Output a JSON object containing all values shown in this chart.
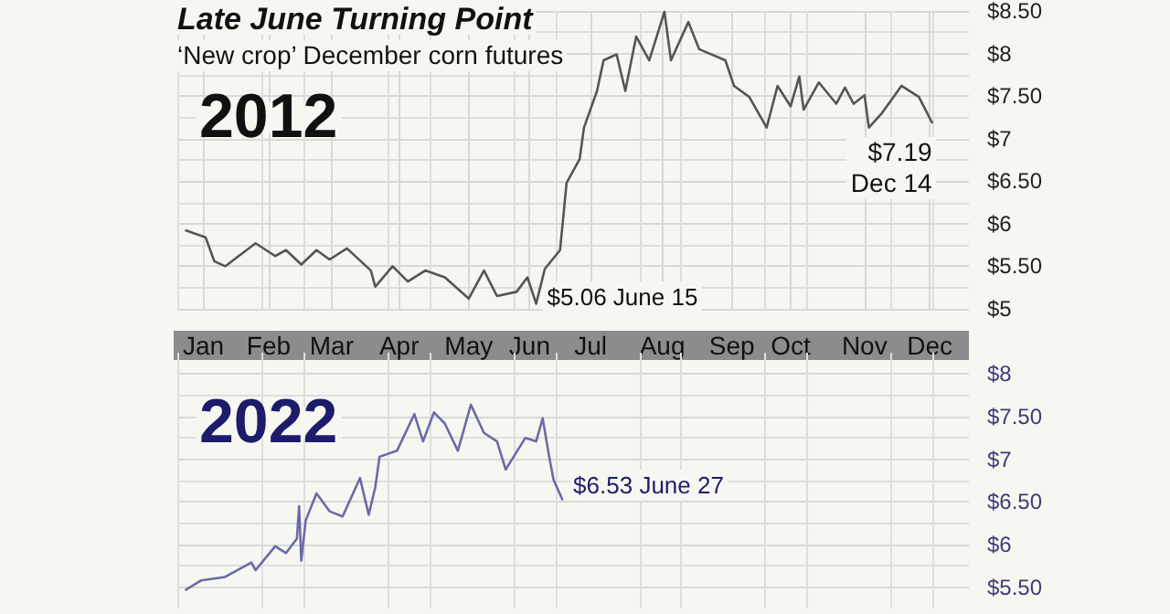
{
  "chart_data": [
    {
      "type": "line",
      "title": "Late June Turning Point",
      "subtitle": "‘New crop’ December corn futures",
      "annotations": [
        "2012",
        {
          "text": "$5.06 June 15",
          "x": "--06-15",
          "y": 5.06
        },
        {
          "text": "$7.19\nDec 14",
          "x": "--12-14",
          "y": 7.19
        }
      ],
      "series": [
        {
          "color": "#555555",
          "x": [
            "--01-05",
            "--01-14",
            "--01-18",
            "--01-23",
            "--02-06",
            "--02-15",
            "--02-20",
            "--02-27",
            "--03-06",
            "--03-12",
            "--03-20",
            "--03-31",
            "--04-02",
            "--04-10",
            "--04-17",
            "--04-25",
            "--05-04",
            "--05-15",
            "--05-22",
            "--05-28",
            "--06-06",
            "--06-11",
            "--06-15",
            "--06-19",
            "--06-26",
            "--06-29",
            "--07-05",
            "--07-07",
            "--07-13",
            "--07-16",
            "--07-22",
            "--07-26",
            "--07-31",
            "--08-06",
            "--08-13",
            "--08-16",
            "--08-24",
            "--08-29",
            "--09-10",
            "--09-14",
            "--09-21",
            "--09-29",
            "--10-04",
            "--10-10",
            "--10-14",
            "--10-16",
            "--10-23",
            "--10-31",
            "--11-04",
            "--11-08",
            "--11-13",
            "--11-15",
            "--11-21",
            "--11-30",
            "--12-08",
            "--12-14"
          ],
          "values": [
            5.92,
            5.84,
            5.56,
            5.5,
            5.77,
            5.62,
            5.69,
            5.52,
            5.69,
            5.58,
            5.71,
            5.45,
            5.26,
            5.5,
            5.32,
            5.45,
            5.37,
            5.12,
            5.45,
            5.15,
            5.2,
            5.37,
            5.06,
            5.47,
            5.69,
            6.48,
            6.76,
            7.13,
            7.56,
            7.92,
            7.99,
            7.56,
            8.2,
            7.92,
            8.49,
            7.92,
            8.37,
            8.05,
            7.92,
            7.62,
            7.49,
            7.13,
            7.62,
            7.38,
            7.73,
            7.34,
            7.66,
            7.41,
            7.6,
            7.41,
            7.51,
            7.13,
            7.3,
            7.62,
            7.49,
            7.19
          ]
        }
      ],
      "xlim": [
        "--01-01",
        "--12-31"
      ],
      "xticks": [
        {
          "value": "--01-13",
          "label": "Jan"
        },
        {
          "value": "--02-12",
          "label": "Feb"
        },
        {
          "value": "--03-13",
          "label": "Mar"
        },
        {
          "value": "--04-13",
          "label": "Apr"
        },
        {
          "value": "--05-15",
          "label": "May"
        },
        {
          "value": "--06-12",
          "label": "Jun"
        },
        {
          "value": "--07-10",
          "label": "Jul"
        },
        {
          "value": "--08-12",
          "label": "Aug"
        },
        {
          "value": "--09-13",
          "label": "Sep"
        },
        {
          "value": "--10-10",
          "label": "Oct"
        },
        {
          "value": "--11-13",
          "label": "Nov"
        },
        {
          "value": "--12-13",
          "label": "Dec"
        }
      ],
      "ylim": [
        5,
        8.5
      ],
      "yticks": [
        {
          "value": 5,
          "label": "$5"
        },
        {
          "value": 5.5,
          "label": "$5.50"
        },
        {
          "value": 6,
          "label": "$6"
        },
        {
          "value": 6.5,
          "label": "$6.50"
        },
        {
          "value": 7,
          "label": "$7"
        },
        {
          "value": 7.5,
          "label": "$7.50"
        },
        {
          "value": 8,
          "label": "$8"
        },
        {
          "value": 8.5,
          "label": "$8.50"
        }
      ],
      "grid": true,
      "marker": "none",
      "line_style": "solid"
    },
    {
      "type": "line",
      "annotations": [
        "2022",
        {
          "text": "$6.53 June 27",
          "x": "--06-27",
          "y": 6.53
        }
      ],
      "series": [
        {
          "color": "#6a6aa8",
          "x": [
            "--01-05",
            "--01-12",
            "--01-23",
            "--02-04",
            "--02-06",
            "--02-15",
            "--02-20",
            "--02-25",
            "--02-26",
            "--02-27",
            "--03-01",
            "--03-06",
            "--03-12",
            "--03-18",
            "--03-26",
            "--03-30",
            "--04-02",
            "--04-04",
            "--04-12",
            "--04-20",
            "--04-24",
            "--04-29",
            "--05-04",
            "--05-10",
            "--05-16",
            "--05-22",
            "--05-28",
            "--06-01",
            "--06-10",
            "--06-15",
            "--06-18",
            "--06-21",
            "--06-23",
            "--06-27"
          ],
          "values": [
            5.47,
            5.58,
            5.62,
            5.79,
            5.7,
            5.98,
            5.9,
            6.07,
            6.45,
            5.81,
            6.28,
            6.6,
            6.39,
            6.33,
            6.78,
            6.35,
            6.67,
            7.03,
            7.1,
            7.53,
            7.21,
            7.55,
            7.42,
            7.1,
            7.64,
            7.31,
            7.21,
            6.88,
            7.25,
            7.21,
            7.48,
            7.03,
            6.76,
            6.53
          ]
        }
      ],
      "xlim": [
        "--01-01",
        "--12-31"
      ],
      "ylim": [
        5.25,
        8.25
      ],
      "yticks": [
        {
          "value": 5.5,
          "label": "$5.50"
        },
        {
          "value": 6,
          "label": "$6"
        },
        {
          "value": 6.5,
          "label": "$6.50"
        },
        {
          "value": 7,
          "label": "$7"
        },
        {
          "value": 7.5,
          "label": "$7.50"
        },
        {
          "value": 8,
          "label": "$8"
        }
      ],
      "tick_labels": "y",
      "grid": true,
      "marker": "none",
      "line_style": "solid"
    }
  ]
}
